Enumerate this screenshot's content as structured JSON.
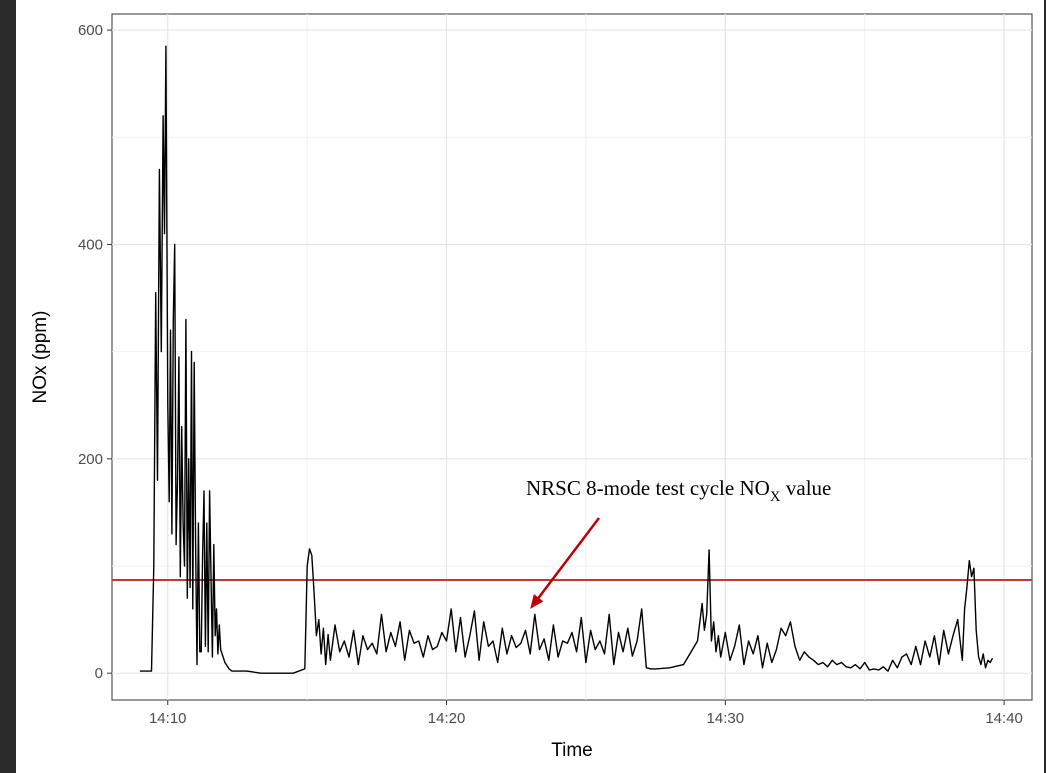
{
  "chart_data": {
    "type": "line",
    "title": "",
    "xlabel": "Time",
    "ylabel": "NOx (ppm)",
    "x_ticks": [
      "14:10",
      "14:20",
      "14:30",
      "14:40"
    ],
    "y_ticks": [
      "0",
      "200",
      "400",
      "600"
    ],
    "xlim": [
      "14:08:00",
      "14:41:00"
    ],
    "ylim": [
      -25,
      615
    ],
    "grid": true,
    "series": [
      {
        "color": "#000000",
        "x": [
          "14:09:00",
          "14:09:25",
          "14:09:30",
          "14:09:34",
          "14:09:38",
          "14:09:42",
          "14:09:46",
          "14:09:50",
          "14:09:53",
          "14:09:56",
          "14:10:00",
          "14:10:03",
          "14:10:06",
          "14:10:09",
          "14:10:12",
          "14:10:15",
          "14:10:18",
          "14:10:21",
          "14:10:24",
          "14:10:27",
          "14:10:30",
          "14:10:33",
          "14:10:36",
          "14:10:39",
          "14:10:42",
          "14:10:45",
          "14:10:48",
          "14:10:51",
          "14:10:54",
          "14:10:57",
          "14:11:00",
          "14:11:03",
          "14:11:06",
          "14:11:09",
          "14:11:12",
          "14:11:15",
          "14:11:18",
          "14:11:21",
          "14:11:24",
          "14:11:27",
          "14:11:30",
          "14:11:33",
          "14:11:36",
          "14:11:39",
          "14:11:42",
          "14:11:45",
          "14:11:48",
          "14:11:51",
          "14:11:54",
          "14:11:57",
          "14:12:00",
          "14:12:03",
          "14:12:06",
          "14:12:09",
          "14:12:12",
          "14:12:15",
          "14:12:18",
          "14:12:21",
          "14:12:24",
          "14:12:27",
          "14:12:30",
          "14:12:40",
          "14:12:50",
          "14:13:05",
          "14:13:20",
          "14:13:40",
          "14:14:00",
          "14:14:30",
          "14:14:55",
          "14:15:00",
          "14:15:05",
          "14:15:10",
          "14:15:15",
          "14:15:20",
          "14:15:25",
          "14:15:30",
          "14:15:35",
          "14:15:40",
          "14:15:45",
          "14:15:50",
          "14:16:00",
          "14:16:10",
          "14:16:20",
          "14:16:30",
          "14:16:40",
          "14:16:50",
          "14:17:00",
          "14:17:10",
          "14:17:20",
          "14:17:30",
          "14:17:40",
          "14:17:50",
          "14:18:00",
          "14:18:10",
          "14:18:20",
          "14:18:30",
          "14:18:40",
          "14:18:50",
          "14:19:00",
          "14:19:10",
          "14:19:20",
          "14:19:30",
          "14:19:40",
          "14:19:50",
          "14:20:00",
          "14:20:10",
          "14:20:20",
          "14:20:30",
          "14:20:40",
          "14:20:50",
          "14:21:00",
          "14:21:10",
          "14:21:20",
          "14:21:30",
          "14:21:40",
          "14:21:50",
          "14:22:00",
          "14:22:10",
          "14:22:20",
          "14:22:30",
          "14:22:40",
          "14:22:50",
          "14:23:00",
          "14:23:10",
          "14:23:20",
          "14:23:30",
          "14:23:40",
          "14:23:50",
          "14:24:00",
          "14:24:10",
          "14:24:20",
          "14:24:30",
          "14:24:40",
          "14:24:50",
          "14:25:00",
          "14:25:10",
          "14:25:20",
          "14:25:30",
          "14:25:40",
          "14:25:50",
          "14:26:00",
          "14:26:10",
          "14:26:20",
          "14:26:30",
          "14:26:40",
          "14:26:50",
          "14:27:00",
          "14:27:10",
          "14:27:20",
          "14:27:30",
          "14:28:00",
          "14:28:30",
          "14:29:00",
          "14:29:10",
          "14:29:15",
          "14:29:20",
          "14:29:25",
          "14:29:30",
          "14:29:35",
          "14:29:40",
          "14:29:45",
          "14:29:50",
          "14:30:00",
          "14:30:10",
          "14:30:20",
          "14:30:30",
          "14:30:40",
          "14:30:50",
          "14:31:00",
          "14:31:10",
          "14:31:20",
          "14:31:30",
          "14:31:40",
          "14:31:50",
          "14:32:00",
          "14:32:10",
          "14:32:20",
          "14:32:30",
          "14:32:40",
          "14:32:50",
          "14:33:00",
          "14:33:10",
          "14:33:20",
          "14:33:30",
          "14:33:40",
          "14:33:50",
          "14:34:00",
          "14:34:10",
          "14:34:20",
          "14:34:30",
          "14:34:40",
          "14:34:50",
          "14:35:00",
          "14:35:10",
          "14:35:20",
          "14:35:30",
          "14:35:40",
          "14:35:50",
          "14:36:00",
          "14:36:10",
          "14:36:20",
          "14:36:30",
          "14:36:40",
          "14:36:50",
          "14:37:00",
          "14:37:10",
          "14:37:20",
          "14:37:30",
          "14:37:40",
          "14:37:50",
          "14:38:00",
          "14:38:10",
          "14:38:20",
          "14:38:30",
          "14:38:35",
          "14:38:40",
          "14:38:45",
          "14:38:50",
          "14:38:55",
          "14:39:00",
          "14:39:05",
          "14:39:10",
          "14:39:15",
          "14:39:20",
          "14:39:25",
          "14:39:30",
          "14:39:35"
        ],
        "y": [
          2,
          2,
          100,
          355,
          180,
          470,
          300,
          520,
          410,
          585,
          250,
          160,
          320,
          130,
          330,
          400,
          120,
          180,
          295,
          90,
          230,
          140,
          100,
          330,
          70,
          200,
          80,
          300,
          60,
          290,
          120,
          8,
          140,
          20,
          20,
          110,
          170,
          25,
          140,
          20,
          170,
          90,
          15,
          120,
          35,
          60,
          18,
          45,
          22,
          18,
          14,
          10,
          8,
          6,
          4,
          3,
          2,
          2,
          2,
          2,
          2,
          2,
          2,
          1,
          0,
          0,
          0,
          0,
          4,
          100,
          116,
          110,
          75,
          35,
          50,
          18,
          42,
          8,
          36,
          12,
          45,
          20,
          30,
          15,
          40,
          8,
          35,
          22,
          28,
          18,
          55,
          20,
          38,
          25,
          48,
          12,
          40,
          28,
          30,
          15,
          35,
          22,
          25,
          38,
          30,
          60,
          20,
          52,
          15,
          35,
          58,
          12,
          48,
          25,
          30,
          10,
          42,
          18,
          35,
          24,
          28,
          40,
          18,
          55,
          22,
          32,
          12,
          45,
          15,
          30,
          28,
          38,
          20,
          52,
          10,
          40,
          22,
          30,
          18,
          55,
          8,
          38,
          20,
          42,
          16,
          30,
          60,
          5,
          4,
          4,
          5,
          8,
          30,
          65,
          40,
          55,
          115,
          30,
          48,
          20,
          35,
          15,
          38,
          12,
          25,
          45,
          8,
          30,
          18,
          35,
          5,
          28,
          10,
          22,
          42,
          35,
          48,
          25,
          12,
          20,
          15,
          12,
          8,
          10,
          6,
          12,
          8,
          10,
          6,
          5,
          8,
          4,
          10,
          3,
          4,
          3,
          6,
          2,
          12,
          5,
          15,
          18,
          8,
          25,
          8,
          30,
          15,
          35,
          8,
          40,
          18,
          35,
          50,
          12,
          60,
          80,
          105,
          90,
          98,
          40,
          15,
          8,
          18,
          5,
          12,
          10,
          14
        ]
      }
    ],
    "reference_line": {
      "y": 87,
      "color": "#cc3333"
    },
    "annotation": {
      "text": "NRSC 8-mode test cycle NO",
      "subscript": "X",
      "suffix": " value",
      "arrow_color": "#c00000",
      "points_to": {
        "x": "14:23:00",
        "y": 60
      }
    }
  }
}
